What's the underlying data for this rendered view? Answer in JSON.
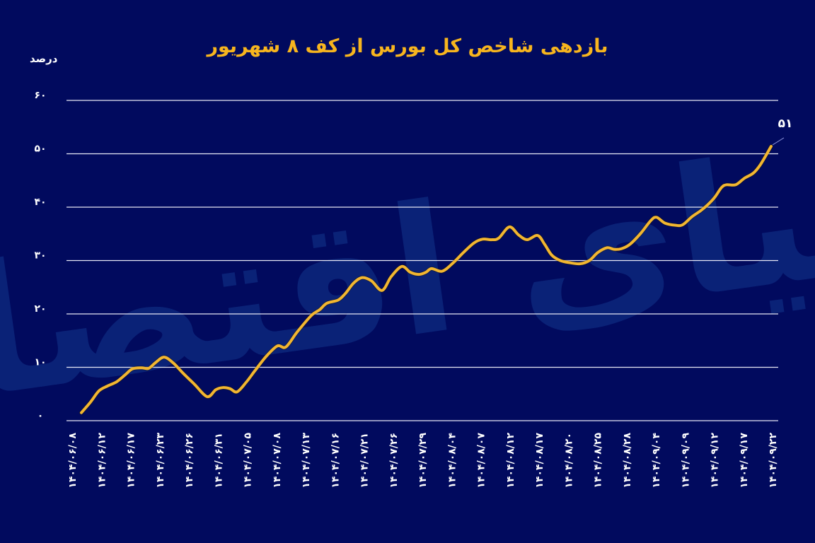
{
  "title": "بازدهی شاخص کل بورس از کف ۸ شهریور",
  "unit_label": "درصد",
  "colors": {
    "background": "#010a5e",
    "line": "#f2b630",
    "title": "#f7b51e",
    "grid": "#e6e8f5",
    "watermark": "#0d2a80"
  },
  "watermark_text": "دنیای اقتصاد",
  "end_label": "۵۱",
  "chart_data": {
    "type": "line",
    "title": "بازدهی شاخص کل بورس از کف ۸ شهریور",
    "xlabel": "",
    "ylabel": "درصد",
    "ylim": [
      0,
      60
    ],
    "yticks": [
      0,
      10,
      20,
      30,
      40,
      50,
      60
    ],
    "ytick_labels": [
      "۰",
      "۱۰",
      "۲۰",
      "۳۰",
      "۴۰",
      "۵۰",
      "۶۰"
    ],
    "grid": true,
    "legend": "none",
    "categories": [
      "۱۴۰۴/۰۶/۰۸",
      "۱۴۰۴/۰۶/۱۲",
      "۱۴۰۴/۰۶/۱۷",
      "۱۴۰۴/۰۶/۲۳",
      "۱۴۰۴/۰۶/۲۶",
      "۱۴۰۴/۰۶/۳۱",
      "۱۴۰۴/۰۷/۰۵",
      "۱۴۰۴/۰۷/۰۸",
      "۱۴۰۴/۰۷/۱۳",
      "۱۴۰۴/۰۷/۱۶",
      "۱۴۰۴/۰۷/۲۱",
      "۱۴۰۴/۰۷/۲۶",
      "۱۴۰۴/۰۷/۲۹",
      "۱۴۰۴/۰۸/۰۴",
      "۱۴۰۴/۰۸/۰۷",
      "۱۴۰۴/۰۸/۱۲",
      "۱۴۰۴/۰۸/۱۷",
      "۱۴۰۴/۰۸/۲۰",
      "۱۴۰۴/۰۸/۲۵",
      "۱۴۰۴/۰۸/۲۸",
      "۱۴۰۴/۰۹/۰۴",
      "۱۴۰۴/۰۹/۰۹",
      "۱۴۰۴/۰۹/۱۲",
      "۱۴۰۴/۰۹/۱۷",
      "۱۴۰۴/۰۹/۲۲"
    ],
    "series": [
      {
        "name": "بازدهی شاخص کل",
        "points": [
          [
            115,
            1.5
          ],
          [
            128,
            3.5
          ],
          [
            140,
            5.6
          ],
          [
            152,
            6.5
          ],
          [
            165,
            7.3
          ],
          [
            177,
            8.6
          ],
          [
            187,
            9.7
          ],
          [
            200,
            9.9
          ],
          [
            210,
            9.8
          ],
          [
            220,
            10.9
          ],
          [
            232,
            11.9
          ],
          [
            245,
            10.8
          ],
          [
            258,
            9.0
          ],
          [
            275,
            6.8
          ],
          [
            293,
            4.5
          ],
          [
            305,
            5.8
          ],
          [
            315,
            6.2
          ],
          [
            325,
            6.0
          ],
          [
            335,
            5.4
          ],
          [
            348,
            7.2
          ],
          [
            360,
            9.3
          ],
          [
            376,
            12.0
          ],
          [
            392,
            14.0
          ],
          [
            404,
            13.8
          ],
          [
            420,
            16.6
          ],
          [
            440,
            19.7
          ],
          [
            452,
            20.8
          ],
          [
            462,
            22.0
          ],
          [
            478,
            22.6
          ],
          [
            488,
            23.8
          ],
          [
            500,
            25.8
          ],
          [
            512,
            26.8
          ],
          [
            525,
            26.2
          ],
          [
            540,
            24.4
          ],
          [
            553,
            27.0
          ],
          [
            568,
            28.9
          ],
          [
            580,
            27.8
          ],
          [
            592,
            27.4
          ],
          [
            602,
            27.8
          ],
          [
            610,
            28.5
          ],
          [
            625,
            28.0
          ],
          [
            640,
            29.5
          ],
          [
            655,
            31.5
          ],
          [
            670,
            33.3
          ],
          [
            682,
            34.0
          ],
          [
            695,
            33.9
          ],
          [
            705,
            34.2
          ],
          [
            720,
            36.3
          ],
          [
            733,
            34.8
          ],
          [
            745,
            33.9
          ],
          [
            760,
            34.7
          ],
          [
            770,
            33.0
          ],
          [
            780,
            31.0
          ],
          [
            792,
            30.0
          ],
          [
            805,
            29.6
          ],
          [
            820,
            29.4
          ],
          [
            833,
            30.0
          ],
          [
            845,
            31.5
          ],
          [
            858,
            32.4
          ],
          [
            868,
            32.1
          ],
          [
            878,
            32.2
          ],
          [
            890,
            33.0
          ],
          [
            905,
            35.0
          ],
          [
            920,
            37.5
          ],
          [
            928,
            38.1
          ],
          [
            940,
            37.0
          ],
          [
            955,
            36.6
          ],
          [
            965,
            36.7
          ],
          [
            978,
            38.2
          ],
          [
            990,
            39.3
          ],
          [
            1000,
            40.4
          ],
          [
            1010,
            41.8
          ],
          [
            1020,
            43.7
          ],
          [
            1027,
            44.2
          ],
          [
            1040,
            44.2
          ],
          [
            1052,
            45.4
          ],
          [
            1065,
            46.4
          ],
          [
            1075,
            48.0
          ],
          [
            1090,
            51.4
          ]
        ]
      }
    ],
    "annotations": [
      {
        "text": "۵۱",
        "x_index": "last",
        "value": 51
      }
    ]
  }
}
